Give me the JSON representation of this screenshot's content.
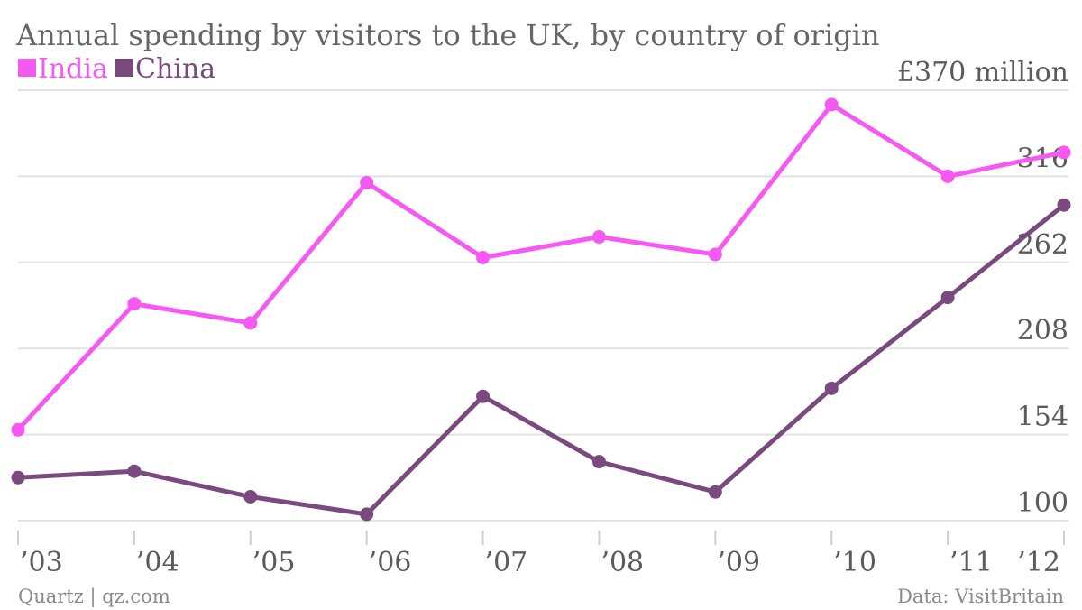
{
  "chart_data": {
    "type": "line",
    "title": "Annual spending by visitors to the UK, by country of origin",
    "categories": [
      "’03",
      "’04",
      "’05",
      "’06",
      "’07",
      "’08",
      "’09",
      "’10",
      "’11",
      "’12"
    ],
    "series": [
      {
        "name": "India",
        "color": "#f658f2",
        "values": [
          157,
          236,
          224,
          312,
          265,
          278,
          267,
          361,
          316,
          331
        ]
      },
      {
        "name": "China",
        "color": "#7a4a7e",
        "values": [
          127,
          131,
          115,
          104,
          178,
          137,
          118,
          183,
          240,
          298
        ]
      }
    ],
    "yticks": [
      {
        "value": 100,
        "label": "100"
      },
      {
        "value": 154,
        "label": "154"
      },
      {
        "value": 208,
        "label": "208"
      },
      {
        "value": 262,
        "label": "262"
      },
      {
        "value": 316,
        "label": "316"
      },
      {
        "value": 370,
        "label": "£370 million"
      }
    ],
    "ylim": [
      100,
      370
    ],
    "grid": true,
    "legend_position": "top-left"
  },
  "footer": {
    "source_left": "Quartz | qz.com",
    "source_right": "Data: VisitBritain"
  }
}
